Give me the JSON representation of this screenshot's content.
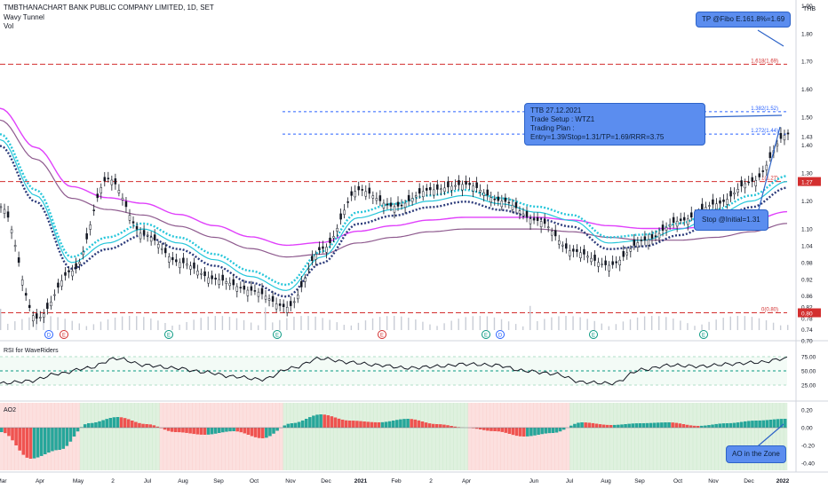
{
  "header": {
    "symbol_line": "TMBTHANACHART BANK PUBLIC COMPANY LIMITED, 1D, SET",
    "indicator1": "Wavy Tunnel",
    "indicator2": "Vol",
    "currency": "THB"
  },
  "annotations": {
    "tp": "TP @Fibo E.161.8%=1.69",
    "trade_line1": "TTB 27.12.2021",
    "trade_line2": "Trade Setup : WTZ1",
    "trade_line3": "Trading Plan : Entry=1.39/Stop=1.31/TP=1.69/RRR=3.75",
    "stop": "Stop @Initial=1.31",
    "ao": "AO in the Zone"
  },
  "fib_labels": [
    "1.618(1.69)",
    "1.382(1.52)",
    "1.272(1.44)",
    "1(1.27)",
    "0(0.80)"
  ],
  "price_axis": [
    "1.90",
    "1.80",
    "1.70",
    "1.60",
    "1.50",
    "1.43",
    "1.40",
    "1.30",
    "1.20",
    "1.10",
    "1.04",
    "0.98",
    "0.92",
    "0.86",
    "0.82",
    "0.78",
    "0.74",
    "0.70"
  ],
  "price_tags": [
    "1.27",
    "0.80"
  ],
  "rsi": {
    "title": "RSI for WaveRiders",
    "ticks": [
      "75.00",
      "50.00",
      "25.00"
    ]
  },
  "ao": {
    "title": "AO2",
    "ticks": [
      "0.20",
      "0.00",
      "-0.20",
      "-0.40"
    ]
  },
  "time_axis": [
    "Mar",
    "Apr",
    "May",
    "2",
    "Jul",
    "Aug",
    "Sep",
    "Oct",
    "Nov",
    "Dec",
    "2021",
    "Feb",
    "2",
    "Apr",
    "Jun",
    "Jul",
    "Aug",
    "Sep",
    "Oct",
    "Nov",
    "Dec",
    "2022"
  ],
  "event_badges": [
    "D",
    "E",
    "E",
    "E",
    "E",
    "E",
    "D",
    "E",
    "E"
  ],
  "colors": {
    "fib_red": "#d32f2f",
    "fib_blue": "#2962ff",
    "tunnel_cyan": "#26c6da",
    "tunnel_navy": "#2b3a7a",
    "ema_magenta": "#e040fb",
    "ema_purple": "#8e5a8e",
    "candle": "#131722",
    "callout_bg": "#5b8def"
  },
  "chart_data": {
    "type": "line",
    "title": "TMBTHANACHART BANK PUBLIC COMPANY LIMITED, 1D, SET",
    "ylim": [
      0.7,
      1.92
    ],
    "x": [
      "Mar",
      "Apr",
      "May",
      "Jun",
      "Jul",
      "Aug",
      "Sep",
      "Oct",
      "Nov",
      "Dec",
      "2021-Jan",
      "Feb",
      "Mar",
      "Apr",
      "May",
      "Jun",
      "Jul",
      "Aug",
      "Sep",
      "Oct",
      "Nov",
      "Dec",
      "2022"
    ],
    "series": [
      {
        "values": [
          1.18,
          0.78,
          0.95,
          1.28,
          1.08,
          0.98,
          0.92,
          0.88,
          0.82,
          1.03,
          1.24,
          1.18,
          1.24,
          1.26,
          1.2,
          1.13,
          1.02,
          0.97,
          1.06,
          1.13,
          1.19,
          1.27,
          1.44
        ]
      },
      {
        "values": [
          1.42,
          1.22,
          0.98,
          1.05,
          1.1,
          1.05,
          0.99,
          0.93,
          0.88,
          1.0,
          1.14,
          1.17,
          1.2,
          1.22,
          1.19,
          1.16,
          1.13,
          1.05,
          1.06,
          1.1,
          1.15,
          1.2,
          1.27
        ]
      },
      {
        "values": [
          1.52,
          1.38,
          1.24,
          1.2,
          1.18,
          1.14,
          1.1,
          1.06,
          1.03,
          1.04,
          1.08,
          1.1,
          1.12,
          1.13,
          1.13,
          1.13,
          1.12,
          1.1,
          1.09,
          1.09,
          1.1,
          1.12,
          1.15
        ]
      }
    ]
  },
  "rsi_data": [
    28,
    32,
    45,
    55,
    72,
    60,
    55,
    48,
    40,
    35,
    55,
    72,
    65,
    60,
    55,
    58,
    62,
    60,
    50,
    45,
    30,
    28,
    52,
    60,
    58,
    62,
    65,
    72
  ],
  "ao_data": [
    -0.05,
    -0.35,
    -0.25,
    0.05,
    0.12,
    0.04,
    -0.05,
    -0.08,
    -0.04,
    -0.12,
    0.05,
    0.15,
    0.08,
    0.06,
    0.1,
    0.04,
    0.0,
    -0.04,
    -0.1,
    -0.06,
    0.06,
    0.03,
    0.05,
    0.06,
    0.02,
    0.05,
    0.08,
    0.1
  ]
}
